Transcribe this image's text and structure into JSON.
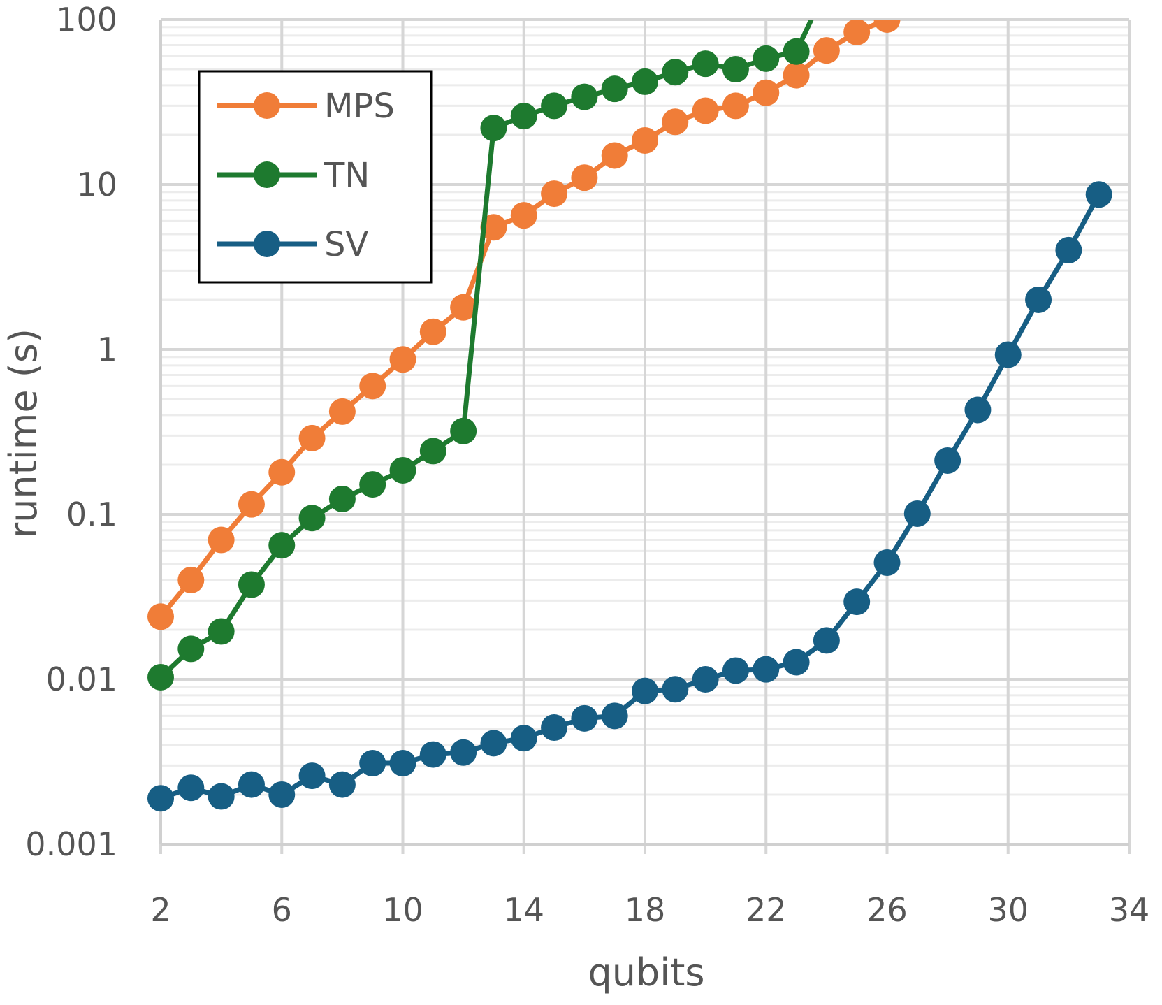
{
  "chart_data": {
    "type": "line",
    "xlabel": "qubits",
    "ylabel": "runtime (s)",
    "xlim": [
      2,
      34
    ],
    "ylim": [
      0.001,
      100
    ],
    "yscale": "log",
    "grid": true,
    "legend_position": "top-left",
    "x_ticks": [
      2,
      6,
      10,
      14,
      18,
      22,
      26,
      30,
      34
    ],
    "x_tick_labels": [
      "2",
      "6",
      "10",
      "14",
      "18",
      "22",
      "26",
      "30",
      "34"
    ],
    "y_ticks": [
      0.001,
      0.01,
      0.1,
      1,
      10,
      100
    ],
    "y_tick_labels": [
      "0.001",
      "0.01",
      "0.1",
      "1",
      "10",
      "100"
    ],
    "series": [
      {
        "name": "MPS",
        "color": "#f07d38",
        "x": [
          2,
          3,
          4,
          5,
          6,
          7,
          8,
          9,
          10,
          11,
          12,
          13,
          14,
          15,
          16,
          17,
          18,
          19,
          20,
          21,
          22,
          23,
          24,
          25,
          26
        ],
        "y": [
          0.024,
          0.04,
          0.07,
          0.115,
          0.18,
          0.29,
          0.42,
          0.6,
          0.87,
          1.28,
          1.8,
          5.5,
          6.5,
          8.8,
          11,
          15,
          18.5,
          24,
          28,
          30,
          36,
          46,
          65,
          84,
          100
        ]
      },
      {
        "name": "TN",
        "color": "#1e7a2f",
        "x": [
          2,
          3,
          4,
          5,
          6,
          7,
          8,
          9,
          10,
          11,
          12,
          13,
          14,
          15,
          16,
          17,
          18,
          19,
          20,
          21,
          22,
          23,
          23.5
        ],
        "y": [
          0.0103,
          0.0153,
          0.0195,
          0.0375,
          0.065,
          0.095,
          0.124,
          0.152,
          0.185,
          0.242,
          0.32,
          22,
          26,
          30,
          34,
          38,
          42,
          48,
          54,
          50,
          58,
          64,
          100
        ]
      },
      {
        "name": "SV",
        "color": "#175e84",
        "x": [
          2,
          3,
          4,
          5,
          6,
          7,
          8,
          9,
          10,
          11,
          12,
          13,
          14,
          15,
          16,
          17,
          18,
          19,
          20,
          21,
          22,
          23,
          24,
          25,
          26,
          27,
          28,
          29,
          30,
          31,
          32,
          33
        ],
        "y": [
          0.0019,
          0.0022,
          0.00195,
          0.0023,
          0.002,
          0.0026,
          0.0023,
          0.0031,
          0.0031,
          0.0035,
          0.0036,
          0.0041,
          0.0044,
          0.0051,
          0.0058,
          0.006,
          0.0085,
          0.0087,
          0.01,
          0.0113,
          0.0115,
          0.0127,
          0.0172,
          0.0295,
          0.051,
          0.101,
          0.212,
          0.43,
          0.93,
          2.0,
          4.0,
          8.7
        ]
      }
    ]
  }
}
